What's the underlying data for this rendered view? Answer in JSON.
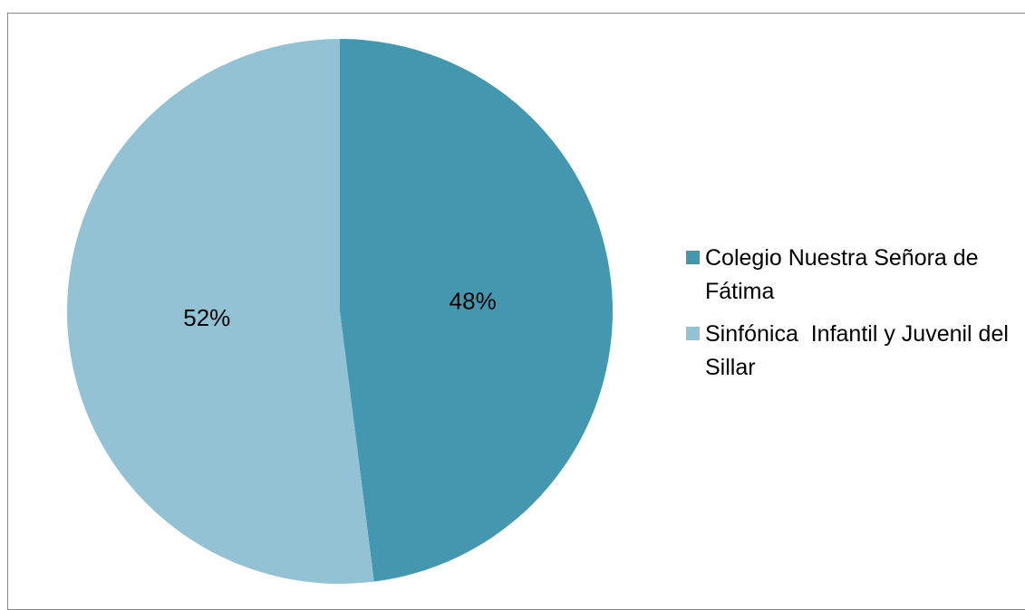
{
  "chart_data": {
    "type": "pie",
    "categories": [
      "Colegio Nuestra Señora de Fátima",
      "Sinfónica  Infantil y Juvenil del Sillar"
    ],
    "values": [
      48,
      52
    ],
    "value_labels": [
      "48%",
      "52%"
    ],
    "colors": [
      "#4398b0",
      "#93c2d4"
    ],
    "legend": "right"
  }
}
